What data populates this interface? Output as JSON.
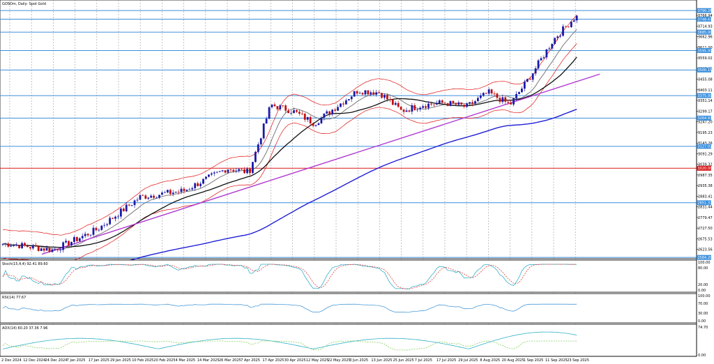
{
  "window_title": "GOSDm, Daily: Spot Gold",
  "colors": {
    "bull": "#1a1aa8",
    "bear": "#c01010",
    "ema_fast": "#7a7a7a",
    "sma_mid": "#111111",
    "sma_long": "#1f1fd6",
    "bands": "#e01010",
    "trendline": "#b038d0",
    "hline": "#3b8fdc",
    "hline_red": "#d81818",
    "range_box": "#a9dce6",
    "stoch_main": "#30b0c8",
    "stoch_signal": "#e04040",
    "rsi": "#4a9ad8",
    "adx_main": "#30b0c8",
    "adx_plus": "#88d060",
    "adx_minus": "#e0c040"
  },
  "price_axis": {
    "ticks": [
      "3766.94",
      "3714.93",
      "3662.96",
      "3611.00",
      "3559.02",
      "3507.05",
      "3455.08",
      "3403.11",
      "3351.14",
      "3299.17",
      "3247.20",
      "3195.23",
      "3143.26",
      "3091.29",
      "3039.32",
      "2987.35",
      "2935.38",
      "2883.41",
      "2831.44",
      "2779.47",
      "2727.50",
      "2675.53",
      "2623.56"
    ],
    "ylim": [
      2578,
      3842
    ]
  },
  "level_labels": [
    {
      "price": 3790.26,
      "text": "3790.26",
      "color": "#3b8fdc"
    },
    {
      "price": 3748.47,
      "text": "3748.47",
      "color": "#3b8fdc"
    },
    {
      "price": 3685.0,
      "text": "3685.00",
      "color": "#3b8fdc"
    },
    {
      "price": 3595.0,
      "text": "3595.00",
      "color": "#3b8fdc"
    },
    {
      "price": 3500.15,
      "text": "3500.15",
      "color": "#3b8fdc"
    },
    {
      "price": 3375.0,
      "text": "3375.00",
      "color": "#3b8fdc"
    },
    {
      "price": 3264.93,
      "text": "3264.93",
      "color": "#3b8fdc"
    },
    {
      "price": 3127.02,
      "text": "3127.02",
      "color": "#3b8fdc"
    },
    {
      "price": 3020.0,
      "text": "3020.00",
      "color": "#d81818"
    },
    {
      "price": 2851.33,
      "text": "2851.33",
      "color": "#3b8fdc"
    },
    {
      "price": 2584.2,
      "text": "2584.20",
      "color": "#3b8fdc"
    }
  ],
  "date_axis": [
    "2 Dec 2024",
    "12 Dec 2024",
    "24 Dec 2024",
    "7 Jan 2025",
    "17 Jan 2025",
    "29 Jan 2025",
    "10 Feb 2025",
    "20 Feb 2025",
    "4 Mar 2025",
    "14 Mar 2025",
    "26 Mar 2025",
    "7 Apr 2025",
    "17 Apr 2025",
    "30 Apr 2025",
    "12 May 2025",
    "22 May 2025",
    "3 Jun 2025",
    "13 Jun 2025",
    "25 Jun 2025",
    "7 Jul 2025",
    "17 Jul 2025",
    "29 Jul 2025",
    "8 Aug 2025",
    "20 Aug 2025",
    "1 Sep 2025",
    "11 Sep 2025",
    "23 Sep 2025"
  ],
  "stoch": {
    "label": "Stoch(15,4,4) 92.41 89.60",
    "ticks": [
      "100.00",
      "80.00",
      "20.00",
      "0.00"
    ]
  },
  "rsi": {
    "label": "RSI(14) 77.67",
    "ticks": [
      "100.00",
      "70.00",
      "30.00",
      "0.00"
    ]
  },
  "adx": {
    "label": "ADX(14) 60.20 37.36 7.96",
    "ticks": [
      "74.70",
      "0.00"
    ]
  },
  "chart_data": {
    "type": "line",
    "title": "GOSDm, Daily: Spot Gold",
    "xlabel": "",
    "ylabel": "",
    "ylim": [
      2578,
      3842
    ],
    "x": [
      "2 Dec 2024",
      "24 Dec 2024",
      "17 Jan 2025",
      "10 Feb 2025",
      "4 Mar 2025",
      "26 Mar 2025",
      "7 Apr 2025",
      "17 Apr 2025",
      "30 Apr 2025",
      "12 May 2025",
      "22 May 2025",
      "3 Jun 2025",
      "13 Jun 2025",
      "25 Jun 2025",
      "7 Jul 2025",
      "17 Jul 2025",
      "29 Jul 2025",
      "8 Aug 2025",
      "20 Aug 2025",
      "1 Sep 2025",
      "11 Sep 2025",
      "23 Sep 2025"
    ],
    "series": [
      {
        "values": [
          2650,
          2620,
          2720,
          2880,
          2910,
          3020,
          3000,
          3330,
          3300,
          3240,
          3320,
          3400,
          3390,
          3300,
          3330,
          3340,
          3320,
          3390,
          3330,
          3480,
          3650,
          3760
        ]
      }
    ],
    "range_box": {
      "from": "7 Apr 2025",
      "to": "22 Aug 2025",
      "low": 3248,
      "high": 3442
    }
  }
}
